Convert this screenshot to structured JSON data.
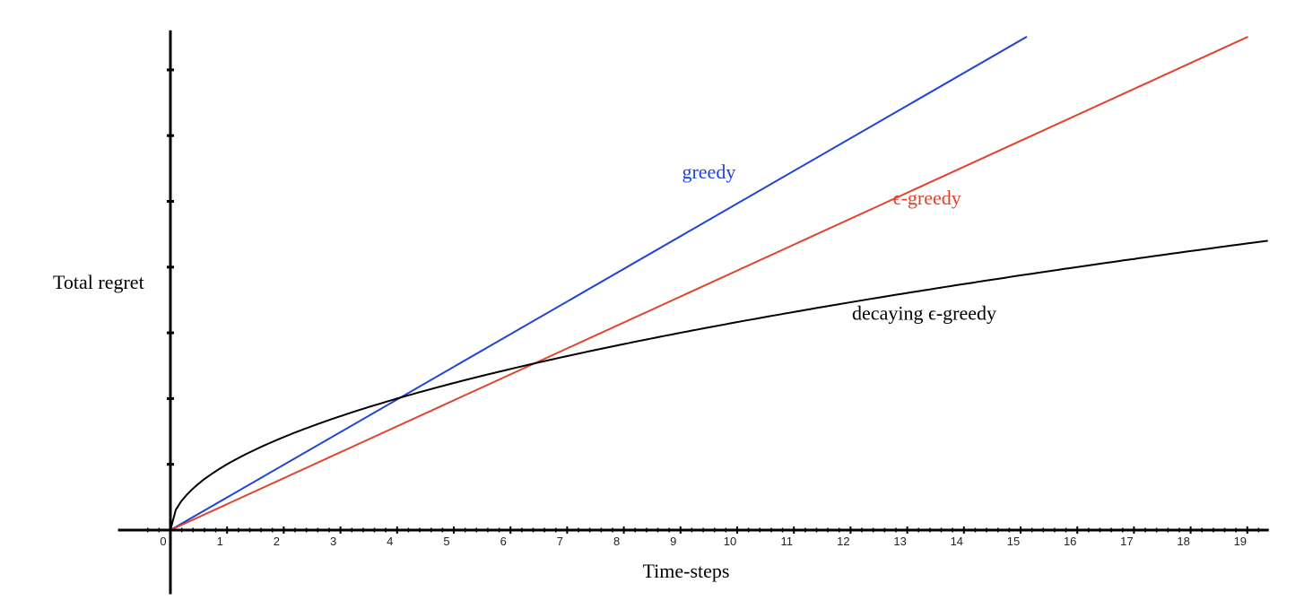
{
  "chart_data": {
    "type": "line",
    "title": "",
    "xlabel": "Time-steps",
    "ylabel": "Total regret",
    "xlim": [
      -0.45,
      19.3
    ],
    "ylim": [
      -0.88,
      7.6
    ],
    "grid": false,
    "legend": "none",
    "x_ticks": [
      0,
      1,
      2,
      3,
      4,
      5,
      6,
      7,
      8,
      9,
      10,
      11,
      12,
      13,
      14,
      15,
      16,
      17,
      18,
      19
    ],
    "x_tick_labels": [
      "0",
      "1",
      "2",
      "3",
      "4",
      "5",
      "6",
      "7",
      "8",
      "9",
      "10",
      "11",
      "12",
      "13",
      "14",
      "15",
      "16",
      "17",
      "18",
      "19"
    ],
    "y_ticks": [
      1,
      2,
      3,
      4,
      5,
      6,
      7
    ],
    "x_minor_step": 0.2,
    "series": [
      {
        "name": "greedy",
        "color": "#1f45d6",
        "x": [
          0,
          15.1
        ],
        "y": [
          0,
          7.5
        ]
      },
      {
        "name": "ϵ-greedy",
        "color": "#e0442e",
        "x": [
          0,
          19.0
        ],
        "y": [
          0,
          7.5
        ]
      },
      {
        "name": "decaying ϵ-greedy",
        "color": "#000000",
        "x": [
          0,
          0.5,
          1,
          2,
          3,
          4,
          5,
          6,
          7,
          8,
          9,
          10,
          11,
          12,
          13,
          14,
          15,
          16,
          17,
          18,
          19
        ],
        "y": [
          0,
          0.71,
          1.0,
          1.41,
          1.74,
          2.0,
          2.24,
          2.45,
          2.65,
          2.83,
          3.0,
          3.16,
          3.32,
          3.46,
          3.61,
          3.74,
          3.87,
          4.0,
          4.12,
          4.24,
          4.36
        ]
      }
    ],
    "annotations": [
      {
        "text": "greedy",
        "x": 9.5,
        "y": 5.35,
        "color": "#1f45d6"
      },
      {
        "text": "ϵ-greedy",
        "x": 13.35,
        "y": 4.95,
        "color": "#e0442e"
      },
      {
        "text": "decaying ϵ-greedy",
        "x": 13.3,
        "y": 3.2,
        "color": "#000000"
      }
    ]
  }
}
